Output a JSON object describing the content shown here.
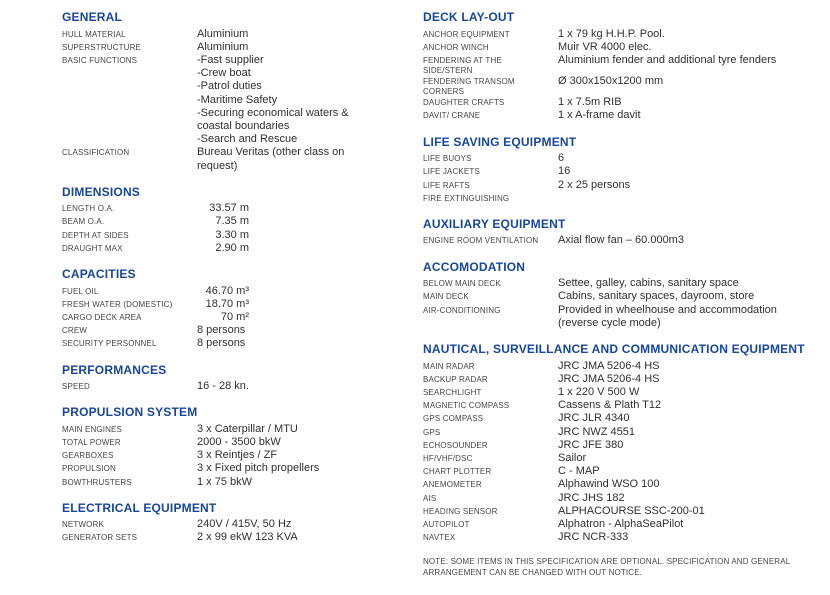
{
  "accent_color": "#17469e",
  "label_color": "#45474c",
  "value_color": "#2f3034",
  "note": "NOTE: SOME ITEMS IN THIS SPECIFICATION ARE OPTIONAL. SPECIFICATION AND GENERAL ARRANGEMENT CAN BE CHANGED WITH OUT NOTICE.",
  "columns": {
    "left": {
      "sections": [
        {
          "title": "GENERAL",
          "rows": [
            {
              "label": "HULL MATERIAL",
              "value": "Aluminium"
            },
            {
              "label": "SUPERSTRUCTURE",
              "value": "Aluminium"
            },
            {
              "label": "BASIC FUNCTIONS",
              "value": "-Fast supplier\n-Crew boat\n-Patrol duties\n-Maritime Safety\n-Securing economical waters &\ncoastal boundaries\n-Search and Rescue"
            },
            {
              "label": "CLASSIFICATION",
              "value": "Bureau Veritas (other class on\nrequest)"
            }
          ]
        },
        {
          "title": "DIMENSIONS",
          "rows": [
            {
              "label": "LENGTH O.A.",
              "value": "33.57 m",
              "num": true
            },
            {
              "label": "BEAM O.A.",
              "value": "7.35 m",
              "num": true
            },
            {
              "label": "DEPTH AT SIDES",
              "value": "3.30 m",
              "num": true
            },
            {
              "label": "DRAUGHT MAX",
              "value": "2.90 m",
              "num": true
            }
          ]
        },
        {
          "title": "CAPACITIES",
          "rows": [
            {
              "label": "FUEL OIL",
              "value": "46.70 m³",
              "num": true
            },
            {
              "label": "FRESH WATER (DOMESTIC)",
              "value": "18.70 m³",
              "num": true
            },
            {
              "label": "CARGO DECK AREA",
              "value": "70 m²",
              "num": true
            },
            {
              "label": "CREW",
              "value": "8 persons"
            },
            {
              "label": "SECURITY PERSONNEL",
              "value": "8 persons"
            }
          ]
        },
        {
          "title": "PERFORMANCES",
          "rows": [
            {
              "label": "SPEED",
              "value": "16 - 28 kn."
            }
          ]
        },
        {
          "title": "PROPULSION SYSTEM",
          "rows": [
            {
              "label": "MAIN ENGINES",
              "value": "3 x Caterpillar / MTU"
            },
            {
              "label": "TOTAL POWER",
              "value": "2000 - 3500 bkW"
            },
            {
              "label": "GEARBOXES",
              "value": "3 x Reintjes / ZF"
            },
            {
              "label": "PROPULSION",
              "value": "3 x Fixed pitch propellers"
            },
            {
              "label": "BOWTHRUSTERS",
              "value": "1 x 75 bkW"
            }
          ]
        },
        {
          "title": "ELECTRICAL EQUIPMENT",
          "rows": [
            {
              "label": "NETWORK",
              "value": "240V / 415V, 50 Hz"
            },
            {
              "label": "GENERATOR SETS",
              "value": "2 x 99 ekW 123 KVA"
            }
          ]
        }
      ]
    },
    "right": {
      "sections": [
        {
          "title": "DECK LAY-OUT",
          "rows": [
            {
              "label": "ANCHOR EQUIPMENT",
              "value": "1 x 79 kg H.H.P. Pool."
            },
            {
              "label": "ANCHOR WINCH",
              "value": "Muir VR 4000 elec."
            },
            {
              "label": "FENDERING AT THE\nSIDE/STERN",
              "value": "Aluminium fender and additional tyre fenders"
            },
            {
              "label": "FENDERING TRANSOM\nCORNERS",
              "value": "Ø 300x150x1200 mm"
            },
            {
              "label": "DAUGHTER CRAFTS",
              "value": "1 x 7.5m RIB"
            },
            {
              "label": "DAVIT/ CRANE",
              "value": "1 x A-frame davit"
            }
          ]
        },
        {
          "title": "LIFE SAVING EQUIPMENT",
          "rows": [
            {
              "label": "LIFE BUOYS",
              "value": "6"
            },
            {
              "label": "LIFE JACKETS",
              "value": "16"
            },
            {
              "label": "LIFE RAFTS",
              "value": "2 x 25 persons"
            },
            {
              "label": "FIRE EXTINGUISHING",
              "value": ""
            }
          ]
        },
        {
          "title": "AUXILIARY EQUIPMENT",
          "rows": [
            {
              "label": "ENGINE ROOM VENTILATION",
              "value": "Axial flow fan – 60.000m3"
            }
          ]
        },
        {
          "title": "ACCOMODATION",
          "rows": [
            {
              "label": "BELOW MAIN DECK",
              "value": "Settee, galley, cabins, sanitary space"
            },
            {
              "label": "MAIN DECK",
              "value": "Cabins, sanitary spaces, dayroom, store"
            },
            {
              "label": "AIR-CONDITIONING",
              "value": "Provided in wheelhouse and accommodation\n(reverse cycle mode)"
            }
          ]
        },
        {
          "title": "NAUTICAL, SURVEILLANCE AND COMMUNICATION EQUIPMENT",
          "rows": [
            {
              "label": "MAIN RADAR",
              "value": "JRC JMA 5206-4 HS"
            },
            {
              "label": "BACKUP RADAR",
              "value": "JRC JMA 5206-4 HS"
            },
            {
              "label": "SEARCHLIGHT",
              "value": "1 x 220 V 500 W"
            },
            {
              "label": "MAGNETIC COMPASS",
              "value": "Cassens & Plath T12"
            },
            {
              "label": "GPS COMPASS",
              "value": "JRC JLR 4340"
            },
            {
              "label": "GPS",
              "value": "JRC NWZ 4551"
            },
            {
              "label": "ECHOSOUNDER",
              "value": "JRC JFE 380"
            },
            {
              "label": "HF/VHF/DSC",
              "value": "Sailor"
            },
            {
              "label": "CHART PLOTTER",
              "value": "C - MAP"
            },
            {
              "label": "ANEMOMETER",
              "value": "Alphawind WSO 100"
            },
            {
              "label": "AIS",
              "value": "JRC JHS 182"
            },
            {
              "label": "HEADING SENSOR",
              "value": "ALPHACOURSE SSC-200-01"
            },
            {
              "label": "AUTOPILOT",
              "value": "Alphatron - AlphaSeaPilot"
            },
            {
              "label": "NAVTEX",
              "value": "JRC NCR-333"
            }
          ]
        }
      ]
    }
  }
}
